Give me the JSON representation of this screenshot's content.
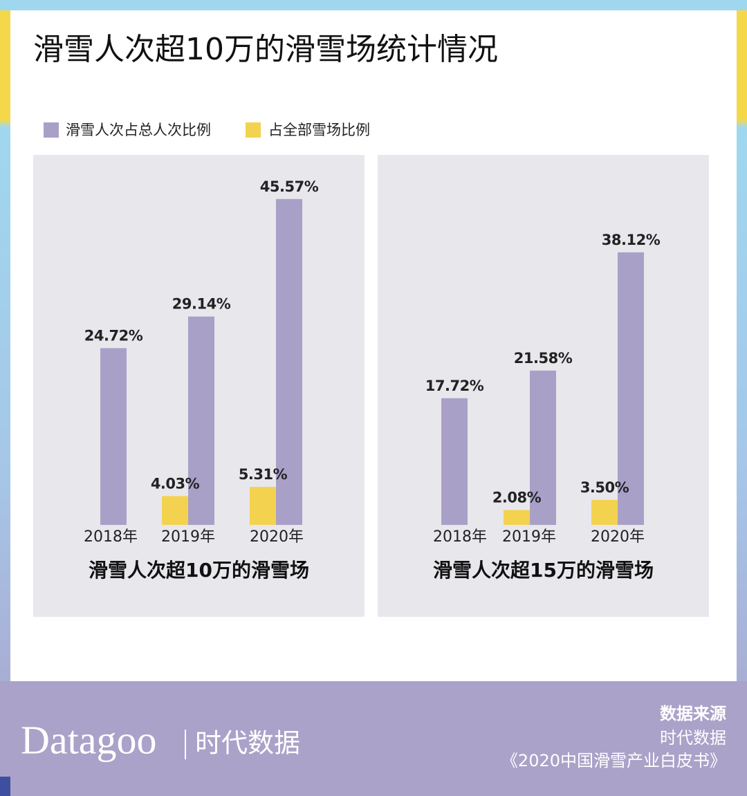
{
  "header": {
    "title": "滑雪人次超10万的滑雪场统计情况"
  },
  "chart_data": [
    {
      "type": "bar",
      "title": "滑雪人次超10万的滑雪场",
      "categories": [
        "2018年",
        "2019年",
        "2020年"
      ],
      "series": [
        {
          "name": "滑雪人次占总人次比例",
          "color": "#a9a0c8",
          "values": [
            24.72,
            29.14,
            45.57
          ],
          "value_labels": [
            "24.72%",
            "29.14%",
            "45.57%"
          ]
        },
        {
          "name": "占全部雪场比例",
          "color": "#f3d24f",
          "values": [
            null,
            4.03,
            5.31
          ],
          "value_labels": [
            null,
            "4.03%",
            "5.31%"
          ]
        }
      ]
    },
    {
      "type": "bar",
      "title": "滑雪人次超15万的滑雪场",
      "categories": [
        "2018年",
        "2019年",
        "2020年"
      ],
      "series": [
        {
          "name": "滑雪人次占总人次比例",
          "color": "#a9a0c8",
          "values": [
            17.72,
            21.58,
            38.12
          ],
          "value_labels": [
            "17.72%",
            "21.58%",
            "38.12%"
          ]
        },
        {
          "name": "占全部雪场比例",
          "color": "#f3d24f",
          "values": [
            null,
            2.08,
            3.5
          ],
          "value_labels": [
            null,
            "2.08%",
            "3.50%"
          ]
        }
      ]
    }
  ],
  "footer": {
    "brand": "Datagoo",
    "brand_cn": "时代数据",
    "source_title": "数据来源",
    "source_lines": [
      "时代数据",
      "《2020中国滑雪产业白皮书》"
    ]
  }
}
